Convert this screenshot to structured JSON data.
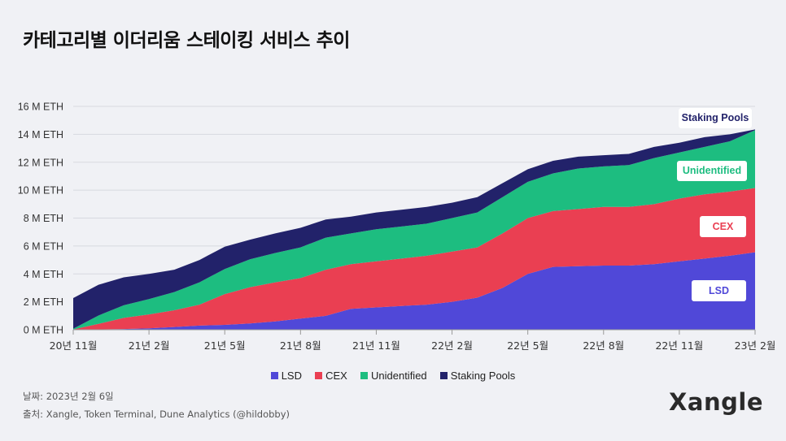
{
  "title": "카테고리별 이더리움 스테이킹 서비스 추이",
  "colors": {
    "LSD": "#5048d8",
    "CEX": "#ea3f52",
    "Unidentified": "#1dbd80",
    "Staking Pools": "#22226a",
    "grid": "#d7d9df",
    "axis": "#999999"
  },
  "chart_data": {
    "type": "area",
    "stacked": true,
    "y_unit": "M ETH",
    "ylim": [
      0,
      16
    ],
    "y_ticks": [
      "0 M ETH",
      "2 M ETH",
      "4 M ETH",
      "6 M ETH",
      "8 M ETH",
      "10 M ETH",
      "12 M ETH",
      "14 M ETH",
      "16 M ETH"
    ],
    "x_ticks": [
      "20년 11월",
      "21년 2월",
      "21년 5월",
      "21년 8월",
      "21년 11월",
      "22년 2월",
      "22년 5월",
      "22년 8월",
      "22년 11월",
      "23년 2월"
    ],
    "x": [
      0,
      1,
      2,
      3,
      4,
      5,
      6,
      7,
      8,
      9,
      10,
      11,
      12,
      13,
      14,
      15,
      16,
      17,
      18,
      19,
      20,
      21,
      22,
      23,
      24,
      25,
      26,
      27
    ],
    "x_labels_note": "x index = months since Nov 2020 (0 = 20년 11월, 27 = 23년 2월)",
    "series": [
      {
        "name": "LSD",
        "values": [
          0.0,
          0.02,
          0.05,
          0.1,
          0.2,
          0.3,
          0.35,
          0.45,
          0.6,
          0.8,
          1.0,
          1.5,
          1.6,
          1.7,
          1.8,
          2.0,
          2.3,
          3.0,
          4.0,
          4.5,
          4.55,
          4.6,
          4.6,
          4.7,
          4.9,
          5.1,
          5.3,
          5.55
        ]
      },
      {
        "name": "CEX",
        "values": [
          0.02,
          0.4,
          0.8,
          1.0,
          1.2,
          1.5,
          2.2,
          2.6,
          2.8,
          2.9,
          3.3,
          3.2,
          3.3,
          3.4,
          3.5,
          3.6,
          3.6,
          3.9,
          4.0,
          4.0,
          4.1,
          4.2,
          4.2,
          4.3,
          4.5,
          4.6,
          4.6,
          4.6
        ]
      },
      {
        "name": "Unidentified",
        "values": [
          0.05,
          0.6,
          0.9,
          1.1,
          1.3,
          1.6,
          1.8,
          2.0,
          2.1,
          2.2,
          2.3,
          2.2,
          2.3,
          2.3,
          2.3,
          2.4,
          2.5,
          2.6,
          2.6,
          2.7,
          2.9,
          2.9,
          3.0,
          3.3,
          3.3,
          3.4,
          3.6,
          4.15
        ]
      },
      {
        "name": "Staking Pools",
        "values": [
          2.2,
          2.2,
          2.0,
          1.8,
          1.6,
          1.6,
          1.6,
          1.4,
          1.4,
          1.4,
          1.3,
          1.2,
          1.2,
          1.2,
          1.2,
          1.1,
          1.1,
          1.0,
          0.9,
          0.9,
          0.85,
          0.8,
          0.8,
          0.8,
          0.7,
          0.7,
          0.5,
          0.05
        ]
      }
    ]
  },
  "labels": {
    "staking_pools": "Staking Pools",
    "unidentified": "Unidentified",
    "cex": "CEX",
    "lsd": "LSD"
  },
  "legend": [
    "LSD",
    "CEX",
    "Unidentified",
    "Staking Pools"
  ],
  "footer": {
    "date": "날짜: 2023년 2월 6일",
    "source": "출처: Xangle, Token Terminal, Dune Analytics (@hildobby)"
  },
  "logo": "Xangle"
}
